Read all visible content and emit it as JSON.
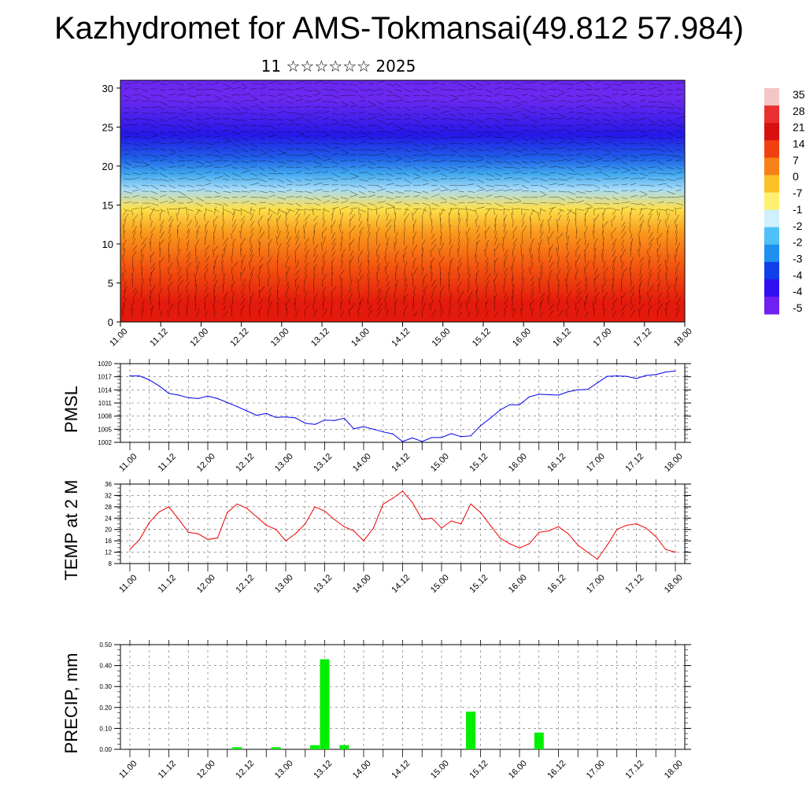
{
  "title": "Kazhydromet for AMS-Tokmansai(49.812 57.984)",
  "subtitle": "11 ☆☆☆☆☆☆ 2025",
  "colors": {
    "pressure_line": "#0000ee",
    "temp_line": "#ee0000",
    "precip_bar": "#00ee00",
    "colorbar": [
      "#f4c6c6",
      "#e83030",
      "#d81010",
      "#f04010",
      "#f88018",
      "#fcc028",
      "#fff070",
      "#d0f0ff",
      "#50c0f8",
      "#2090f0",
      "#1040e8",
      "#3010f0",
      "#7020f0"
    ]
  },
  "chart_data": [
    {
      "type": "heatmap",
      "description_key": "cross-section",
      "x_ticks": [
        "11.00",
        "11.12",
        "12.00",
        "12.12",
        "13.00",
        "13.12",
        "14.00",
        "14.12",
        "15.00",
        "15.12",
        "16.00",
        "16.12",
        "17.00",
        "17.12",
        "18.00"
      ],
      "y_ticks": [
        "0",
        "5",
        "10",
        "15",
        "20",
        "25",
        "30"
      ],
      "ylim": [
        0,
        31
      ],
      "colorbar_labels": [
        "35",
        "28",
        "21",
        "14",
        "7",
        "0",
        "-7",
        "-1",
        "-2",
        "-2",
        "-3",
        "-4",
        "-4",
        "-5"
      ],
      "color_bands": [
        {
          "y0": 0,
          "y1": 5,
          "color": "#e41a0c"
        },
        {
          "y0": 5,
          "y1": 10,
          "color": "#f45a10"
        },
        {
          "y0": 10,
          "y1": 13,
          "color": "#fa9a1c"
        },
        {
          "y0": 13,
          "y1": 16,
          "color": "#fde04a"
        },
        {
          "y0": 16,
          "y1": 18,
          "color": "#a8dcf8"
        },
        {
          "y0": 18,
          "y1": 20,
          "color": "#40a8f0"
        },
        {
          "y0": 20,
          "y1": 22,
          "color": "#2060e8"
        },
        {
          "y0": 22,
          "y1": 26,
          "color": "#2418e8"
        },
        {
          "y0": 26,
          "y1": 31,
          "color": "#6a28f0"
        }
      ]
    },
    {
      "type": "line",
      "ylabel": "PMSL",
      "x_ticks": [
        "11.00",
        "11.12",
        "12.00",
        "12.12",
        "13.00",
        "13.12",
        "14.00",
        "14.12",
        "15.00",
        "15.12",
        "16.00",
        "16.12",
        "17.00",
        "17.12",
        "18.00"
      ],
      "y_ticks": [
        "1002",
        "1005",
        "1008",
        "1011",
        "1014",
        "1017",
        "1020"
      ],
      "ylim": [
        1002,
        1020
      ],
      "x": [
        0,
        3,
        6,
        9,
        12,
        15,
        18,
        21,
        24,
        27,
        30,
        33,
        36,
        39,
        42,
        45,
        48,
        51,
        54,
        57,
        60,
        63,
        66,
        69,
        72,
        75,
        78,
        81,
        84,
        87,
        90,
        93,
        96,
        99,
        102,
        105,
        108,
        111,
        114,
        117,
        120,
        123,
        126,
        129,
        132,
        135,
        138,
        141,
        144,
        147,
        150,
        153,
        156,
        159,
        162,
        165,
        168
      ],
      "values": [
        1017.2,
        1017.2,
        1016.3,
        1014.9,
        1013.2,
        1012.8,
        1012.2,
        1012.0,
        1012.6,
        1012.0,
        1011.1,
        1010.2,
        1009.2,
        1008.2,
        1008.6,
        1007.7,
        1007.8,
        1007.6,
        1006.4,
        1006.1,
        1007.1,
        1007.0,
        1007.5,
        1005.1,
        1005.6,
        1005.0,
        1004.4,
        1003.9,
        1002.2,
        1003.0,
        1002.2,
        1003.1,
        1003.1,
        1004.0,
        1003.3,
        1003.5,
        1005.8,
        1007.5,
        1009.4,
        1010.6,
        1010.6,
        1012.4,
        1013.0,
        1012.9,
        1012.8,
        1013.6,
        1014.0,
        1014.1,
        1015.6,
        1017.1,
        1017.2,
        1017.1,
        1016.6,
        1017.3,
        1017.5,
        1018.1,
        1018.3
      ]
    },
    {
      "type": "line",
      "ylabel": "TEMP at 2 M",
      "x_ticks": [
        "11.00",
        "11.12",
        "12.00",
        "12.12",
        "13.00",
        "13.12",
        "14.00",
        "14.12",
        "15.00",
        "15.12",
        "16.00",
        "16.12",
        "17.00",
        "17.12",
        "18.00"
      ],
      "y_ticks": [
        "8",
        "12",
        "16",
        "20",
        "24",
        "28",
        "32",
        "36"
      ],
      "ylim": [
        8,
        36
      ],
      "x": [
        0,
        3,
        6,
        9,
        12,
        15,
        18,
        21,
        24,
        27,
        30,
        33,
        36,
        39,
        42,
        45,
        48,
        51,
        54,
        57,
        60,
        63,
        66,
        69,
        72,
        75,
        78,
        81,
        84,
        87,
        90,
        93,
        96,
        99,
        102,
        105,
        108,
        111,
        114,
        117,
        120,
        123,
        126,
        129,
        132,
        135,
        138,
        141,
        144,
        147,
        150,
        153,
        156,
        159,
        162,
        165,
        168
      ],
      "values": [
        13.0,
        16.5,
        22.5,
        26.2,
        28.0,
        23.7,
        19.0,
        18.5,
        16.5,
        17.0,
        26.0,
        29.0,
        27.5,
        24.5,
        21.5,
        20.0,
        16.0,
        18.5,
        22.0,
        28.0,
        26.5,
        23.5,
        21.0,
        19.5,
        16.0,
        20.5,
        29.0,
        31.0,
        33.5,
        29.5,
        23.5,
        24.0,
        20.5,
        23.0,
        22.0,
        29.0,
        26.0,
        21.5,
        17.0,
        15.0,
        13.5,
        15.0,
        19.0,
        19.5,
        21.0,
        18.5,
        14.5,
        12.0,
        9.5,
        14.5,
        20.0,
        21.5,
        22.0,
        20.5,
        17.5,
        13.0,
        12.0
      ]
    },
    {
      "type": "bar",
      "ylabel": "PRECIP, mm",
      "x_ticks": [
        "11.00",
        "11.12",
        "12.00",
        "12.12",
        "13.00",
        "13.12",
        "14.00",
        "14.12",
        "15.00",
        "15.12",
        "16.00",
        "16.12",
        "17.00",
        "17.12",
        "18.00"
      ],
      "y_ticks": [
        "0.00",
        "0.10",
        "0.20",
        "0.30",
        "0.40",
        "0.50"
      ],
      "ylim": [
        0,
        0.5
      ],
      "x": [
        33,
        45,
        57,
        60,
        66,
        105,
        126
      ],
      "values": [
        0.01,
        0.01,
        0.02,
        0.43,
        0.02,
        0.18,
        0.08
      ]
    }
  ]
}
